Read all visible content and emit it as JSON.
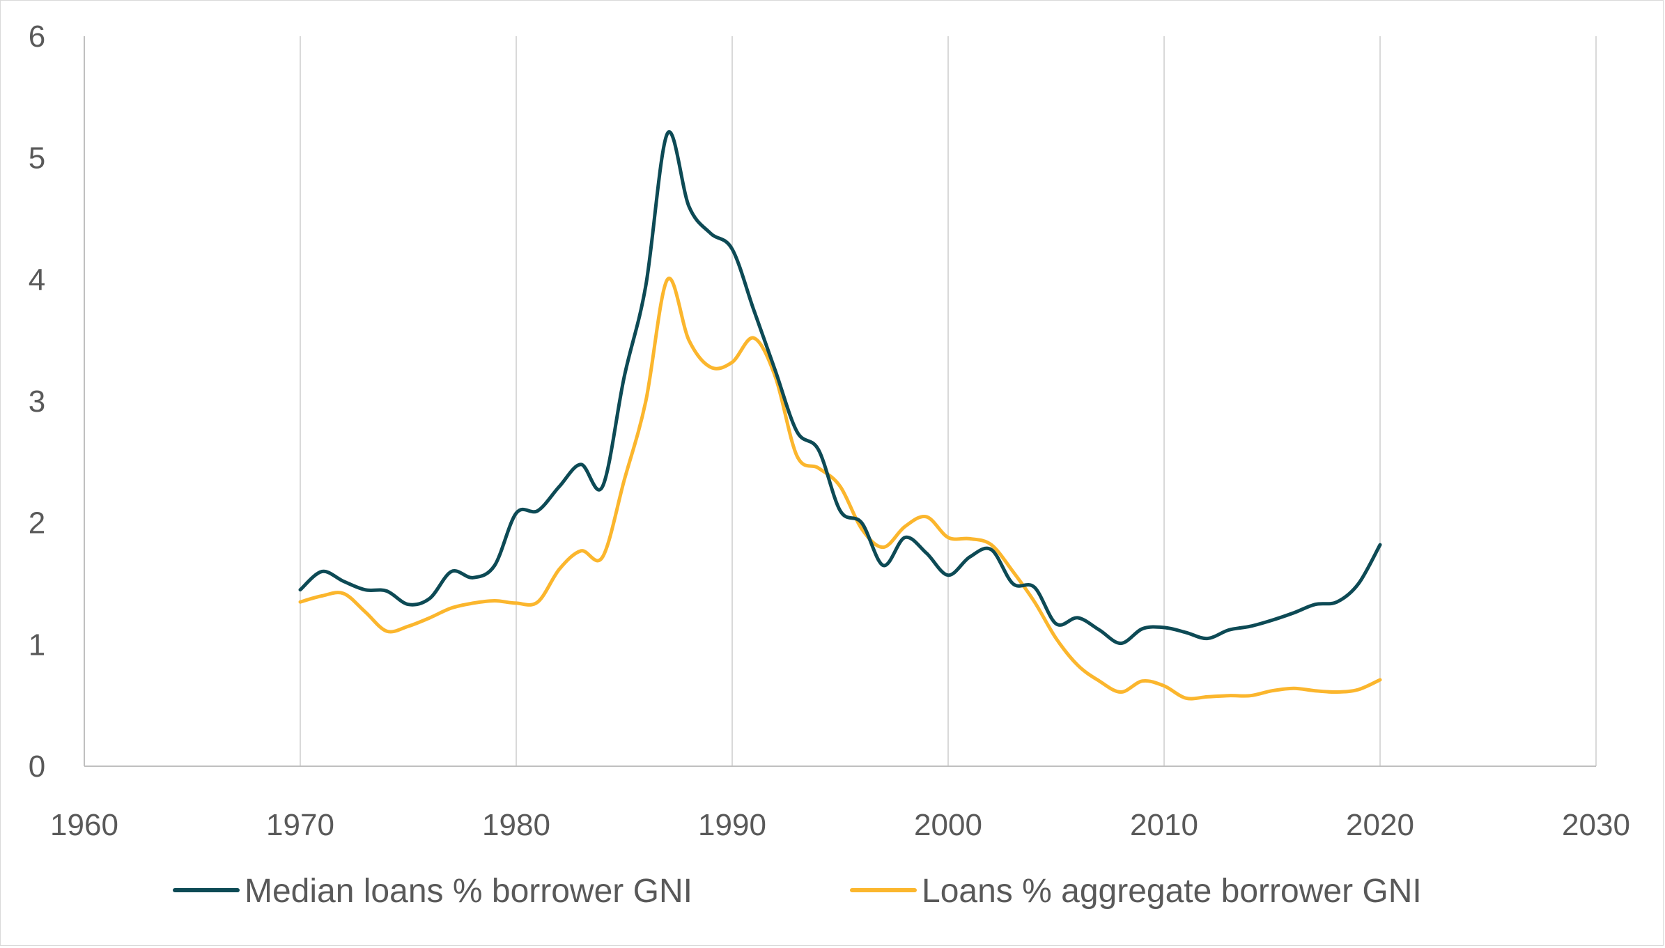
{
  "chart_data": {
    "type": "line",
    "title": "",
    "xlabel": "",
    "ylabel": "",
    "xlim": [
      1960,
      2030
    ],
    "ylim": [
      0,
      6
    ],
    "x_ticks": [
      1960,
      1970,
      1980,
      1990,
      2000,
      2010,
      2020,
      2030
    ],
    "y_ticks": [
      0,
      1,
      2,
      3,
      4,
      5,
      6
    ],
    "grid": "vertical",
    "legend_position": "bottom",
    "colors": {
      "median": "#0d4a55",
      "aggregate": "#fbb62d",
      "grid": "#d9d9d9",
      "axis": "#bfbfbf",
      "text": "#595959"
    },
    "series": [
      {
        "name": "Median loans % borrower GNI",
        "color": "#0d4a55",
        "points": [
          [
            1970,
            1.45
          ],
          [
            1971,
            1.6
          ],
          [
            1972,
            1.52
          ],
          [
            1973,
            1.45
          ],
          [
            1974,
            1.44
          ],
          [
            1975,
            1.33
          ],
          [
            1976,
            1.38
          ],
          [
            1977,
            1.6
          ],
          [
            1978,
            1.55
          ],
          [
            1979,
            1.65
          ],
          [
            1980,
            2.08
          ],
          [
            1981,
            2.1
          ],
          [
            1982,
            2.3
          ],
          [
            1983,
            2.48
          ],
          [
            1984,
            2.3
          ],
          [
            1985,
            3.2
          ],
          [
            1986,
            3.95
          ],
          [
            1987,
            5.2
          ],
          [
            1988,
            4.6
          ],
          [
            1989,
            4.38
          ],
          [
            1990,
            4.25
          ],
          [
            1991,
            3.75
          ],
          [
            1992,
            3.25
          ],
          [
            1993,
            2.75
          ],
          [
            1994,
            2.6
          ],
          [
            1995,
            2.1
          ],
          [
            1996,
            2.0
          ],
          [
            1997,
            1.65
          ],
          [
            1998,
            1.88
          ],
          [
            1999,
            1.75
          ],
          [
            2000,
            1.57
          ],
          [
            2001,
            1.72
          ],
          [
            2002,
            1.78
          ],
          [
            2003,
            1.5
          ],
          [
            2004,
            1.47
          ],
          [
            2005,
            1.17
          ],
          [
            2006,
            1.22
          ],
          [
            2007,
            1.12
          ],
          [
            2008,
            1.01
          ],
          [
            2009,
            1.13
          ],
          [
            2010,
            1.14
          ],
          [
            2011,
            1.1
          ],
          [
            2012,
            1.05
          ],
          [
            2013,
            1.12
          ],
          [
            2014,
            1.15
          ],
          [
            2015,
            1.2
          ],
          [
            2016,
            1.26
          ],
          [
            2017,
            1.33
          ],
          [
            2018,
            1.35
          ],
          [
            2019,
            1.5
          ],
          [
            2020,
            1.82
          ]
        ]
      },
      {
        "name": "Loans % aggregate borrower GNI",
        "color": "#fbb62d",
        "points": [
          [
            1970,
            1.35
          ],
          [
            1971,
            1.4
          ],
          [
            1972,
            1.42
          ],
          [
            1973,
            1.27
          ],
          [
            1974,
            1.11
          ],
          [
            1975,
            1.15
          ],
          [
            1976,
            1.22
          ],
          [
            1977,
            1.3
          ],
          [
            1978,
            1.34
          ],
          [
            1979,
            1.36
          ],
          [
            1980,
            1.34
          ],
          [
            1981,
            1.35
          ],
          [
            1982,
            1.62
          ],
          [
            1983,
            1.77
          ],
          [
            1984,
            1.72
          ],
          [
            1985,
            2.35
          ],
          [
            1986,
            3.0
          ],
          [
            1987,
            4.0
          ],
          [
            1988,
            3.5
          ],
          [
            1989,
            3.28
          ],
          [
            1990,
            3.32
          ],
          [
            1991,
            3.52
          ],
          [
            1992,
            3.2
          ],
          [
            1993,
            2.55
          ],
          [
            1994,
            2.45
          ],
          [
            1995,
            2.3
          ],
          [
            1996,
            1.95
          ],
          [
            1997,
            1.8
          ],
          [
            1998,
            1.97
          ],
          [
            1999,
            2.05
          ],
          [
            2000,
            1.88
          ],
          [
            2001,
            1.87
          ],
          [
            2002,
            1.82
          ],
          [
            2003,
            1.6
          ],
          [
            2004,
            1.35
          ],
          [
            2005,
            1.05
          ],
          [
            2006,
            0.83
          ],
          [
            2007,
            0.7
          ],
          [
            2008,
            0.61
          ],
          [
            2009,
            0.7
          ],
          [
            2010,
            0.66
          ],
          [
            2011,
            0.56
          ],
          [
            2012,
            0.57
          ],
          [
            2013,
            0.58
          ],
          [
            2014,
            0.58
          ],
          [
            2015,
            0.62
          ],
          [
            2016,
            0.64
          ],
          [
            2017,
            0.62
          ],
          [
            2018,
            0.61
          ],
          [
            2019,
            0.63
          ],
          [
            2020,
            0.71
          ]
        ]
      }
    ]
  }
}
